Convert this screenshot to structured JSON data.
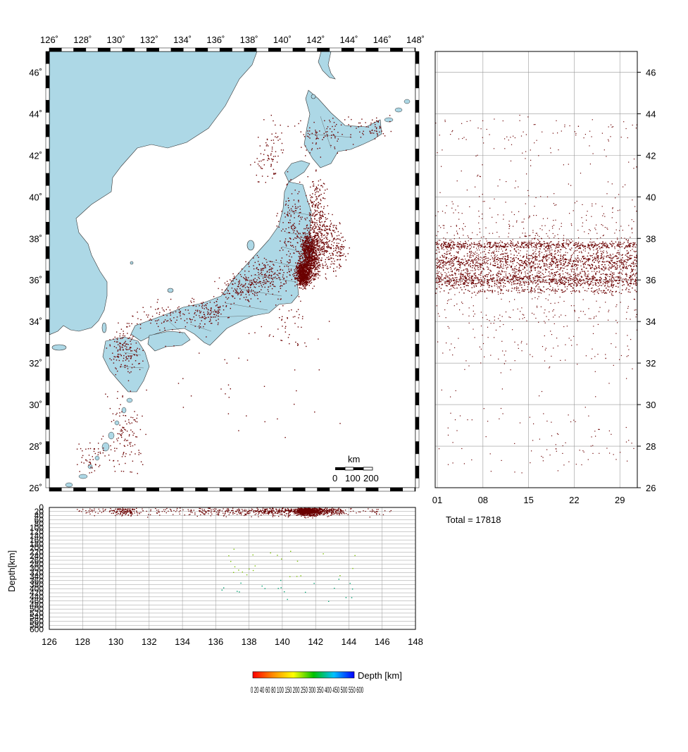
{
  "map": {
    "lon_ticks": [
      "126˚",
      "128˚",
      "130˚",
      "132˚",
      "134˚",
      "136˚",
      "138˚",
      "140˚",
      "142˚",
      "144˚",
      "146˚",
      "148˚"
    ],
    "lat_ticks": [
      "26˚",
      "28˚",
      "30˚",
      "32˚",
      "34˚",
      "36˚",
      "38˚",
      "40˚",
      "42˚",
      "44˚",
      "46˚"
    ],
    "lon_range": [
      126,
      148
    ],
    "lat_range": [
      26,
      47
    ],
    "land_color": "#add8e6",
    "sea_color": "#ffffff",
    "event_color": "#6b0000",
    "scale_bar": {
      "unit": "km",
      "labels": [
        "0",
        "100",
        "200"
      ]
    }
  },
  "time_panel": {
    "x_ticks": [
      "01",
      "08",
      "15",
      "22",
      "29"
    ],
    "y_ticks": [
      "26",
      "28",
      "30",
      "32",
      "34",
      "36",
      "38",
      "40",
      "42",
      "44",
      "46"
    ],
    "total_label": "Total = 17818"
  },
  "depth_panel": {
    "ylabel": "Depth[km]",
    "x_ticks": [
      "126",
      "128",
      "130",
      "132",
      "134",
      "136",
      "138",
      "140",
      "142",
      "144",
      "146",
      "148"
    ],
    "depth_ticks": [
      "0",
      "20",
      "40",
      "60",
      "80",
      "100",
      "120",
      "140",
      "160",
      "180",
      "200",
      "220",
      "240",
      "260",
      "280",
      "300",
      "320",
      "340",
      "360",
      "380",
      "400",
      "420",
      "440",
      "460",
      "480",
      "500",
      "520",
      "540",
      "560",
      "580",
      "600"
    ]
  },
  "colorbar": {
    "label": "Depth [km]",
    "tick_text": "0 20 40 60 80 100 150 200 250 300 350 400 450 500 550 600",
    "colors": [
      "#ff0000",
      "#ff8c00",
      "#ffff00",
      "#00c000",
      "#00c0ff",
      "#0000ff"
    ]
  }
}
